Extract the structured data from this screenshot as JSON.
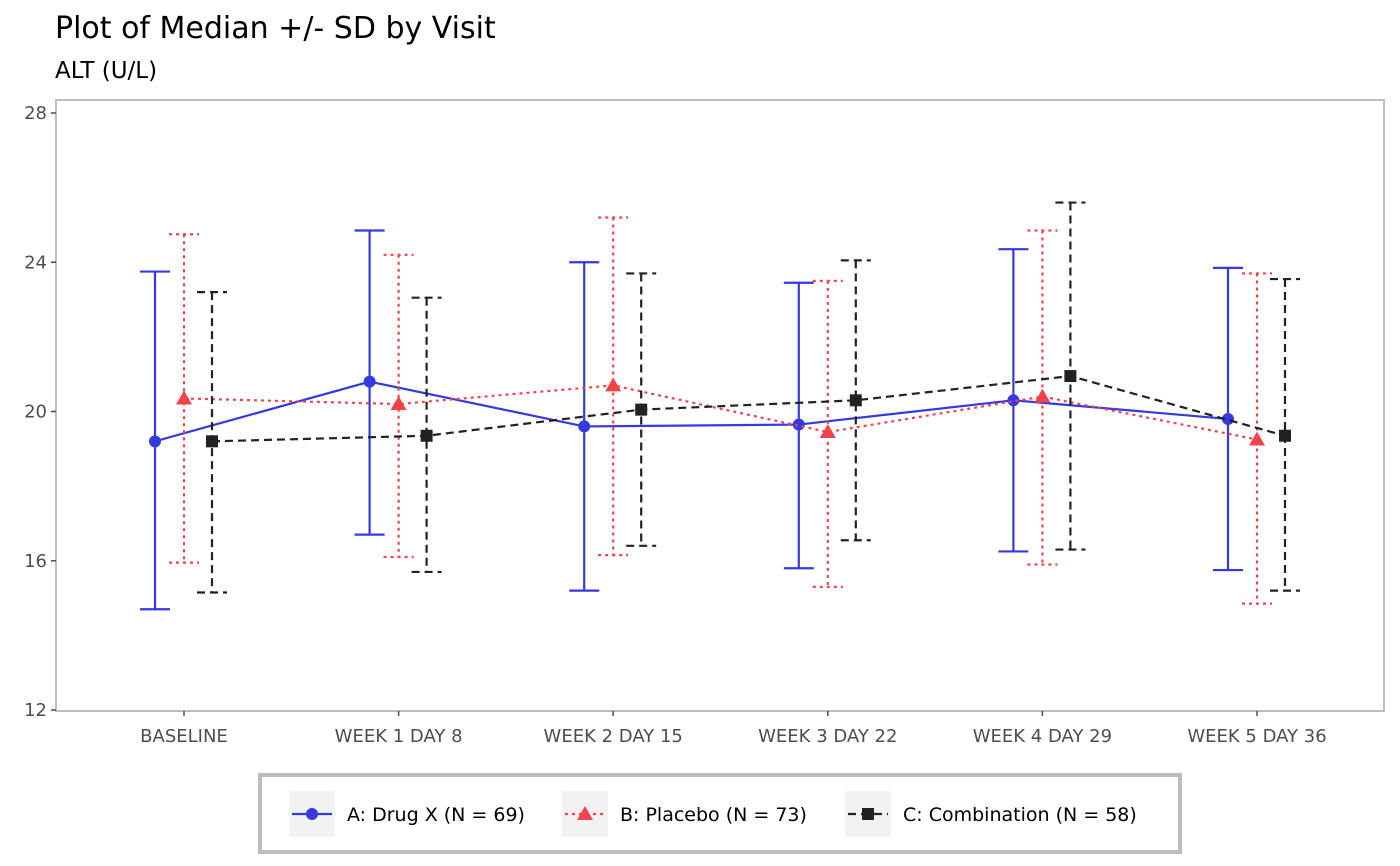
{
  "chart_data": {
    "type": "line",
    "title": "Plot of Median +/- SD by Visit",
    "subtitle": "ALT (U/L)",
    "xlabel": "",
    "ylabel": "",
    "categories": [
      "BASELINE",
      "WEEK 1 DAY 8",
      "WEEK 2 DAY 15",
      "WEEK 3 DAY 22",
      "WEEK 4 DAY 29",
      "WEEK 5 DAY 36"
    ],
    "ylim": [
      12,
      28
    ],
    "yticks": [
      "12",
      "16",
      "20",
      "24",
      "28"
    ],
    "grid": false,
    "legend_position": "bottom",
    "series": [
      {
        "name": "A: Drug X (N = 69)",
        "color": "#3639e0",
        "marker": "circle",
        "line_style": "solid",
        "values": [
          19.2,
          20.8,
          19.6,
          19.65,
          20.3,
          19.8
        ],
        "lower": [
          14.7,
          16.7,
          15.2,
          15.8,
          16.25,
          15.75
        ],
        "upper": [
          23.75,
          24.85,
          24.0,
          23.45,
          24.35,
          23.85
        ]
      },
      {
        "name": "B: Placebo (N = 73)",
        "color": "#f2434b",
        "marker": "triangle",
        "line_style": "dotted",
        "values": [
          20.35,
          20.2,
          20.7,
          19.45,
          20.4,
          19.25
        ],
        "lower": [
          15.95,
          16.1,
          16.15,
          15.3,
          15.9,
          14.85
        ],
        "upper": [
          24.75,
          24.2,
          25.2,
          23.5,
          24.85,
          23.7
        ]
      },
      {
        "name": "C: Combination (N = 58)",
        "color": "#222222",
        "marker": "square",
        "line_style": "dashed",
        "values": [
          19.2,
          19.35,
          20.05,
          20.3,
          20.95,
          19.35
        ],
        "lower": [
          15.15,
          15.7,
          16.4,
          16.55,
          16.3,
          15.2
        ],
        "upper": [
          23.2,
          23.05,
          23.7,
          24.05,
          25.6,
          23.55
        ]
      }
    ]
  }
}
